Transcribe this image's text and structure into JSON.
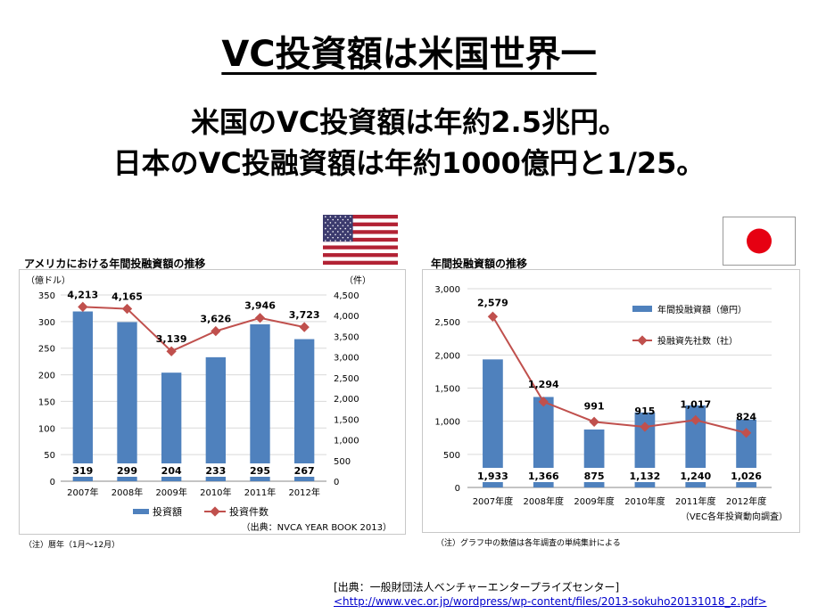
{
  "slide": {
    "title": "VC投資額は米国世界一",
    "subtitle_line1": "米国のVC投資額は年約2.5兆円。",
    "subtitle_line2": "日本のVC投融資額は年約1000億円と1/25。"
  },
  "colors": {
    "bar": "#4f81bd",
    "line": "#c0504d",
    "flag_red": "#b22234",
    "flag_blue": "#3c3b6e",
    "japan_red": "#e60012"
  },
  "us_panel": {
    "title": "アメリカにおける年間投融資額の推移",
    "source": "（出典：NVCA YEAR BOOK 2013）",
    "note": "（注）暦年（1月～12月）"
  },
  "jp_panel": {
    "title": "年間投融資額の推移",
    "source": "（VEC各年投資動向調査）",
    "note": "（注）グラフ中の数値は各年調査の単純集計による"
  },
  "footer": {
    "source_label": "[出典：一般財団法人ベンチャーエンタープライズセンター]",
    "url": "<http://www.vec.or.jp/wordpress/wp-content/files/2013-sokuho20131018_2.pdf>"
  },
  "chart_data": [
    {
      "type": "bar",
      "categories": [
        "2007年",
        "2008年",
        "2009年",
        "2010年",
        "2011年",
        "2012年"
      ],
      "series": [
        {
          "name": "投資額",
          "kind": "bar",
          "axis": "left",
          "values": [
            319,
            299,
            204,
            233,
            295,
            267
          ]
        },
        {
          "name": "投資件数",
          "kind": "line",
          "axis": "right",
          "values": [
            4213,
            4165,
            3139,
            3626,
            3946,
            3723
          ]
        }
      ],
      "ylabel_left": "（億ドル）",
      "ylabel_right": "（件）",
      "ylim_left": [
        0,
        350
      ],
      "ylim_right": [
        0,
        4500
      ],
      "yticks_left": [
        "0",
        "50",
        "100",
        "150",
        "200",
        "250",
        "300",
        "350"
      ],
      "yticks_right": [
        "0",
        "500",
        "1,000",
        "1,500",
        "2,000",
        "2,500",
        "3,000",
        "3,500",
        "4,000",
        "4,500"
      ],
      "bar_labels": [
        "319",
        "299",
        "204",
        "233",
        "295",
        "267"
      ],
      "line_labels": [
        "4,213",
        "4,165",
        "3,139",
        "3,626",
        "3,946",
        "3,723"
      ],
      "legend": "bottom",
      "grid": true
    },
    {
      "type": "bar",
      "categories": [
        "2007年度",
        "2008年度",
        "2009年度",
        "2010年度",
        "2011年度",
        "2012年度"
      ],
      "series": [
        {
          "name": "年間投融資額（億円）",
          "kind": "bar",
          "values": [
            1933,
            1366,
            875,
            1132,
            1240,
            1026
          ]
        },
        {
          "name": "投融資先社数（社）",
          "kind": "line",
          "values": [
            2579,
            1294,
            991,
            915,
            1017,
            824
          ]
        }
      ],
      "ylim": [
        0,
        3000
      ],
      "yticks": [
        "0",
        "500",
        "1,000",
        "1,500",
        "2,000",
        "2,500",
        "3,000"
      ],
      "bar_labels": [
        "1,933",
        "1,366",
        "875",
        "1,132",
        "1,240",
        "1,026"
      ],
      "line_labels": [
        "2,579",
        "1,294",
        "991",
        "915",
        "1,017",
        "824"
      ],
      "legend": "top-right",
      "grid": true
    }
  ]
}
